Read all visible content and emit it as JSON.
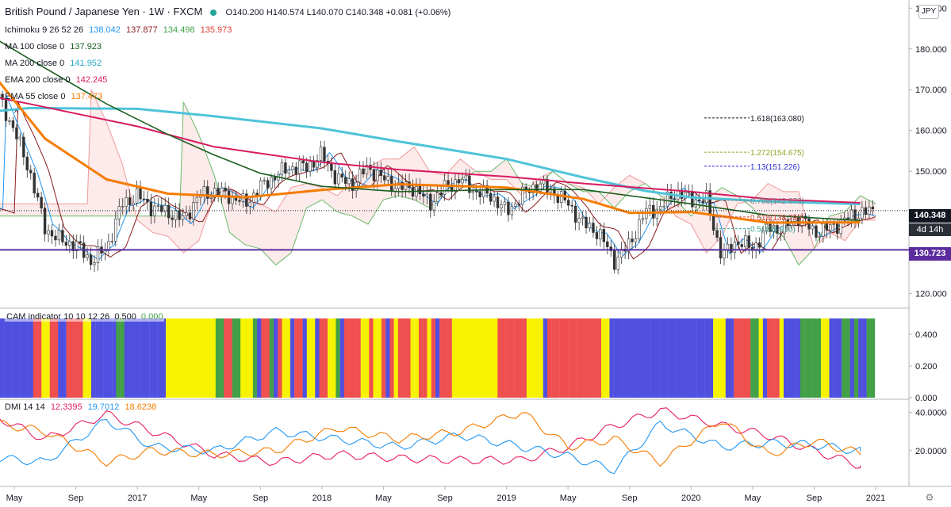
{
  "header": {
    "symbol": "British Pound / Japanese Yen · 1W · FXCM",
    "ohlc": "O140.200  H140.574  L140.070  C140.348  +0.081 (+0.06%)",
    "currency": "JPY"
  },
  "indicators": {
    "ichimoku": {
      "label": "Ichimoku 9 26 52 26",
      "v1": "138.042",
      "v2": "137.877",
      "v3": "134.498",
      "v4": "135.973"
    },
    "ma100": {
      "label": "MA 100 close 0",
      "value": "137.923"
    },
    "ma200": {
      "label": "MA 200 close 0",
      "value": "141.952"
    },
    "ema200": {
      "label": "EMA 200 close 0",
      "value": "142.245"
    },
    "ema55": {
      "label": "EMA 55 close 0",
      "value": "137.473"
    },
    "cam": {
      "label": "CAM indicator 10 10 12 26",
      "v1": "0.500",
      "v2": "0.000"
    },
    "dmi": {
      "label": "DMI 14 14",
      "v1": "12.3395",
      "v2": "19.7012",
      "v3": "18.6238"
    }
  },
  "price_tag": {
    "value": "140.348",
    "countdown": "4d 14h"
  },
  "support_tag": {
    "value": "130.723"
  },
  "fib_labels": [
    {
      "label": "1.618(163.080)",
      "price": 163.08,
      "color": "#131722"
    },
    {
      "label": "1.272(154.675)",
      "price": 154.675,
      "color": "#8ba82a"
    },
    {
      "label": "1.13(151.226)",
      "price": 151.226,
      "color": "#2b2bd4"
    },
    {
      "label": "0.786(142.870)",
      "price": 142.87,
      "color": "#7c7c7c"
    },
    {
      "label": "0.618(138.790)",
      "price": 138.79,
      "color": "#d2453c"
    },
    {
      "label": "0.5(135.910)",
      "price": 135.91,
      "color": "#3aa39a"
    }
  ],
  "colors": {
    "ma200": "#4ec3d9",
    "ema200": "#d81b60",
    "ema55": "#f57c00",
    "ma100": "#1b5e20",
    "kijun": "#8b1a1a",
    "tenkan": "#2196f3",
    "cam_blue": "#4f4fe0",
    "cam_red": "#ef4f4f",
    "cam_yellow": "#f7f300",
    "cam_green": "#43a047",
    "support": "#5b2c9e"
  },
  "chart_data": [
    {
      "type": "candlestick",
      "title": "British Pound / Japanese Yen · 1W · FXCM",
      "ylim": [
        117,
        192
      ],
      "yticks": [
        120,
        130,
        140,
        150,
        160,
        170,
        180,
        190
      ],
      "ytick_labels": [
        "120.000",
        "130.000",
        "140.000",
        "150.000",
        "160.000",
        "170.000",
        "180.000",
        "190.000"
      ],
      "xticks": [
        "May",
        "Sep",
        "2017",
        "May",
        "Sep",
        "2018",
        "May",
        "Sep",
        "2019",
        "May",
        "Sep",
        "2020",
        "May",
        "Sep",
        "2021"
      ],
      "xtick_dates": [
        "2016-05",
        "2016-09",
        "2017-01",
        "2017-05",
        "2017-09",
        "2018-01",
        "2018-05",
        "2018-09",
        "2019-01",
        "2019-05",
        "2019-09",
        "2020-01",
        "2020-05",
        "2020-09",
        "2021-01"
      ],
      "xlim": [
        "2016-04",
        "2021-01"
      ],
      "series": [
        {
          "name": "MA 200 close 0",
          "x": [
            "2016-04",
            "2016-06",
            "2017-01",
            "2017-06",
            "2018-01",
            "2018-06",
            "2019-01",
            "2019-06",
            "2019-10",
            "2020-01",
            "2020-06",
            "2020-12"
          ],
          "values": [
            164.8,
            165.5,
            165.3,
            163.5,
            160.5,
            157.3,
            153.0,
            148.5,
            145.2,
            143.6,
            142.6,
            141.95
          ]
        },
        {
          "name": "EMA 200 close 0",
          "x": [
            "2016-04",
            "2016-06",
            "2017-01",
            "2017-06",
            "2018-01",
            "2018-06",
            "2019-01",
            "2019-06",
            "2020-01",
            "2020-06",
            "2020-12"
          ],
          "values": [
            168.0,
            166.5,
            161.0,
            156.0,
            152.2,
            150.4,
            148.7,
            147.0,
            145.0,
            143.2,
            142.25
          ]
        },
        {
          "name": "EMA 55 close 0",
          "x": [
            "2016-04",
            "2016-07",
            "2016-11",
            "2017-03",
            "2017-08",
            "2018-01",
            "2018-06",
            "2019-01",
            "2019-06",
            "2019-09",
            "2020-01",
            "2020-06",
            "2020-12"
          ],
          "values": [
            172.0,
            158.0,
            148.0,
            144.5,
            143.6,
            145.4,
            146.8,
            146.0,
            143.2,
            139.8,
            140.0,
            137.4,
            137.47
          ]
        },
        {
          "name": "MA 100 close 0",
          "x": [
            "2016-04",
            "2016-06",
            "2016-11",
            "2017-03",
            "2017-06",
            "2017-09",
            "2018-01",
            "2018-06",
            "2019-01",
            "2019-06",
            "2020-01",
            "2020-06",
            "2020-12"
          ],
          "values": [
            182.0,
            177.5,
            166.5,
            159.0,
            154.0,
            149.5,
            146.3,
            145.0,
            145.5,
            145.5,
            142.0,
            139.2,
            137.92
          ]
        }
      ],
      "support_level": 130.723,
      "last_close": 140.348
    },
    {
      "type": "bar",
      "title": "CAM indicator 10 10 12 26",
      "ylim": [
        0,
        0.55
      ],
      "yticks": [
        0,
        0.2,
        0.4
      ],
      "ytick_labels": [
        "0.000",
        "0.200",
        "0.400"
      ],
      "bar_value": 0.5,
      "color_sequence": "BBBBBBBBRRYYRRBBRRRRYYBBBBBBGGBBBBBBBBBBYYYYYYYYYYYYGGRRGGYYYGBRRGBRYYBRRBYYBRRYYGBRRRRYYRYYRBRYRRRYYRRYRBRRRYYYYYYYYYYYRRRRRRRYYYYBRRRRRRRRRRRRRYYBBBBBBBBBBBBBBBBBBBBBBBBBYYYBBRRRRGGYBRRRYBBBBGGGGGYYBBBGGBGBBGG"
    },
    {
      "type": "line",
      "title": "DMI 14 14",
      "ylim": [
        3,
        46
      ],
      "yticks": [
        20,
        40
      ],
      "ytick_labels": [
        "20.0000",
        "40.0000"
      ],
      "series": [
        {
          "name": "DMI line 1",
          "color": "#e91e63",
          "x": [
            "2016-04",
            "2016-07",
            "2016-11",
            "2017-02",
            "2017-06",
            "2017-10",
            "2018-02",
            "2018-06",
            "2018-10",
            "2019-02",
            "2019-05",
            "2019-08",
            "2019-11",
            "2020-03",
            "2020-06",
            "2020-09",
            "2020-12"
          ],
          "values": [
            37,
            26,
            39,
            30,
            18,
            14,
            18,
            16,
            15,
            15,
            22,
            33,
            41,
            33,
            28,
            20,
            12.3
          ]
        },
        {
          "name": "DMI line 2",
          "color": "#2196f3",
          "x": [
            "2016-04",
            "2016-07",
            "2016-11",
            "2017-02",
            "2017-06",
            "2017-10",
            "2018-02",
            "2018-06",
            "2018-10",
            "2019-02",
            "2019-05",
            "2019-08",
            "2019-11",
            "2020-03",
            "2020-06",
            "2020-09",
            "2020-12"
          ],
          "values": [
            16,
            14,
            36,
            22,
            20,
            30,
            26,
            22,
            28,
            22,
            17,
            10,
            34,
            22,
            24,
            23,
            19.7
          ]
        },
        {
          "name": "DMI line 3",
          "color": "#f57c00",
          "x": [
            "2016-04",
            "2016-07",
            "2016-11",
            "2017-02",
            "2017-06",
            "2017-10",
            "2018-02",
            "2018-06",
            "2018-10",
            "2019-02",
            "2019-05",
            "2019-08",
            "2019-11",
            "2020-03",
            "2020-06",
            "2020-09",
            "2020-12"
          ],
          "values": [
            34,
            30,
            14,
            20,
            18,
            20,
            32,
            26,
            30,
            40,
            22,
            26,
            14,
            36,
            18,
            25,
            18.6
          ]
        }
      ]
    }
  ]
}
